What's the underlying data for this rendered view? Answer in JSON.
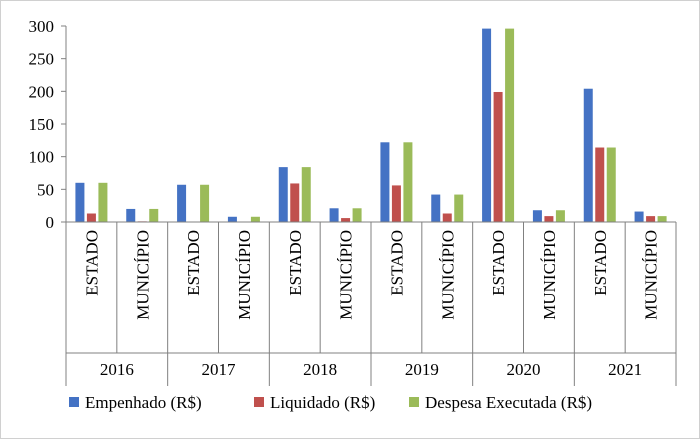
{
  "chart_data": {
    "type": "bar",
    "title": "",
    "xlabel": "",
    "ylabel": "",
    "ylim": [
      0,
      300
    ],
    "yticks": [
      0,
      50,
      100,
      150,
      200,
      250,
      300
    ],
    "grid": false,
    "legend_position": "bottom",
    "groups": [
      {
        "year": "2016",
        "categories": [
          "ESTADO",
          "MUNICÍPIO"
        ]
      },
      {
        "year": "2017",
        "categories": [
          "ESTADO",
          "MUNICÍPIO"
        ]
      },
      {
        "year": "2018",
        "categories": [
          "ESTADO",
          "MUNICÍPIO"
        ]
      },
      {
        "year": "2019",
        "categories": [
          "ESTADO",
          "MUNICÍPIO"
        ]
      },
      {
        "year": "2020",
        "categories": [
          "ESTADO",
          "MUNICÍPIO"
        ]
      },
      {
        "year": "2021",
        "categories": [
          "ESTADO",
          "MUNICÍPIO"
        ]
      }
    ],
    "series": [
      {
        "name": "Empenhado (R$)",
        "color": "#4472C4",
        "values": [
          60,
          20,
          57,
          8,
          84,
          21,
          122,
          42,
          296,
          18,
          204,
          16
        ]
      },
      {
        "name": "Liquidado (R$)",
        "color": "#C0504D",
        "values": [
          13,
          1,
          0,
          0,
          59,
          6,
          56,
          13,
          199,
          9,
          114,
          9
        ]
      },
      {
        "name": "Despesa Executada (R$)",
        "color": "#9BBB59",
        "values": [
          60,
          20,
          57,
          8,
          84,
          21,
          122,
          42,
          296,
          18,
          114,
          9
        ]
      }
    ]
  }
}
